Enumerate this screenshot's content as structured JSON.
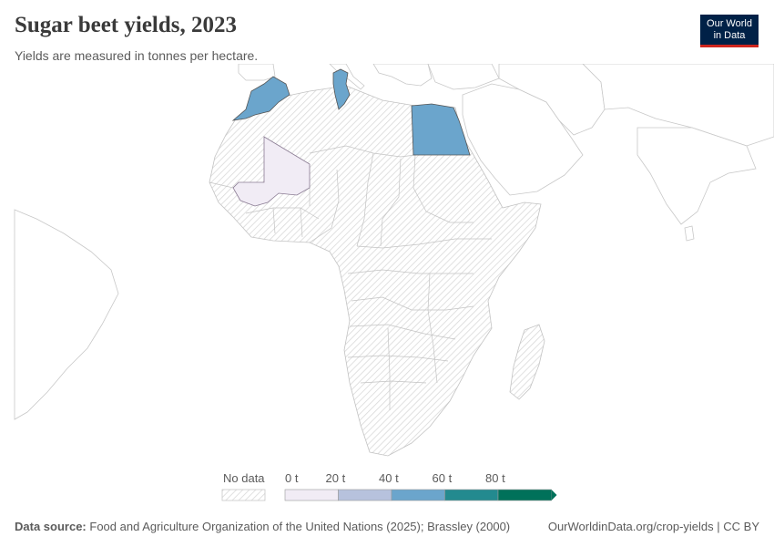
{
  "header": {
    "title": "Sugar beet yields, 2023",
    "subtitle": "Yields are measured in tonnes per hectare."
  },
  "logo": {
    "line1": "Our World",
    "line2": "in Data"
  },
  "legend": {
    "no_data_label": "No data",
    "bins": [
      {
        "label": "0 t",
        "color": "#f1ecf5"
      },
      {
        "label": "20 t",
        "color": "#b7c2dd"
      },
      {
        "label": "40 t",
        "color": "#6ba5cc"
      },
      {
        "label": "60 t",
        "color": "#238a8f"
      },
      {
        "label": "80 t",
        "color": "#00715a"
      }
    ]
  },
  "map_data": {
    "type": "choropleth",
    "region": "Africa",
    "year": 2023,
    "unit": "tonnes per hectare",
    "countries": [
      {
        "name": "Morocco",
        "bin": "40-60 t",
        "color": "#6ba5cc"
      },
      {
        "name": "Tunisia",
        "bin": "40-60 t",
        "color": "#6ba5cc"
      },
      {
        "name": "Egypt",
        "bin": "40-60 t",
        "color": "#6ba5cc"
      },
      {
        "name": "Mali",
        "bin": "0-20 t",
        "color": "#f1ecf5"
      }
    ],
    "no_data_style": "hatched"
  },
  "footer": {
    "source_label": "Data source:",
    "source_text": "Food and Agriculture Organization of the United Nations (2025); Brassley (2000)",
    "right_text": "OurWorldinData.org/crop-yields | CC BY"
  }
}
